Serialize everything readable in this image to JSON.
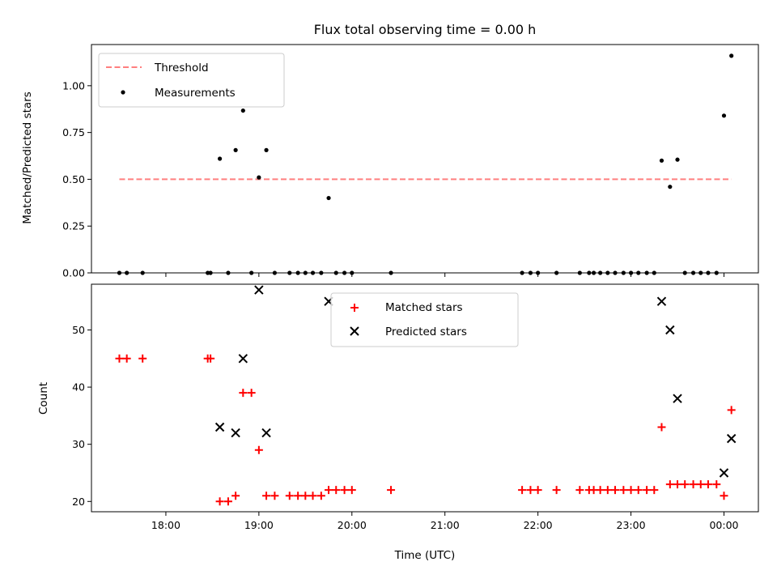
{
  "chart_data": [
    {
      "type": "scatter",
      "title": "Flux total observing time = 0.00 h",
      "xlabel": "",
      "ylabel": "Matched/Predicted stars",
      "ylim": [
        0,
        1.22
      ],
      "yticks": [
        "0.00",
        "0.25",
        "0.50",
        "0.75",
        "1.00"
      ],
      "ytick_values": [
        0,
        0.25,
        0.5,
        0.75,
        1.0
      ],
      "xlim": [
        17.2,
        24.37
      ],
      "legend_placement": "top-left",
      "legend": [
        "Threshold",
        "Measurements"
      ],
      "threshold": {
        "name": "Threshold",
        "value": 0.5,
        "x": [
          17.5,
          24.08
        ],
        "color": "#ff7f7f",
        "style": "dashed"
      },
      "series": [
        {
          "name": "Measurements",
          "color": "#000000",
          "marker": "dot",
          "x": [
            17.5,
            17.58,
            17.75,
            18.45,
            18.48,
            18.58,
            18.67,
            18.75,
            18.83,
            18.92,
            19.0,
            19.08,
            19.17,
            19.33,
            19.42,
            19.5,
            19.58,
            19.67,
            19.75,
            19.83,
            19.92,
            20.0,
            20.42,
            21.83,
            21.92,
            22.0,
            22.2,
            22.45,
            22.55,
            22.6,
            22.67,
            22.75,
            22.83,
            22.92,
            23.0,
            23.08,
            23.17,
            23.25,
            23.33,
            23.42,
            23.5,
            23.58,
            23.67,
            23.75,
            23.83,
            23.92,
            24.0,
            24.08
          ],
          "y": [
            0,
            0,
            0,
            0,
            0,
            0.61,
            0,
            0.656,
            0.867,
            0,
            0.51,
            0.656,
            0,
            0,
            0,
            0,
            0,
            0,
            0.4,
            0,
            0,
            0,
            0,
            0,
            0,
            0,
            0,
            0,
            0,
            0,
            0,
            0,
            0,
            0,
            0,
            0,
            0,
            0,
            0.6,
            0.46,
            0.605,
            0,
            0,
            0,
            0,
            0,
            0.84,
            1.16
          ]
        }
      ]
    },
    {
      "type": "scatter",
      "title": "",
      "xlabel": "Time (UTC)",
      "ylabel": "Count",
      "ylim": [
        18.2,
        58
      ],
      "yticks": [
        "20",
        "30",
        "40",
        "50"
      ],
      "ytick_values": [
        20,
        30,
        40,
        50
      ],
      "xlim": [
        17.2,
        24.37
      ],
      "xticks": [
        "18:00",
        "19:00",
        "20:00",
        "21:00",
        "22:00",
        "23:00",
        "00:00"
      ],
      "xtick_values": [
        18,
        19,
        20,
        21,
        22,
        23,
        24
      ],
      "legend_placement": "upper-center",
      "legend": [
        "Matched stars",
        "Predicted stars"
      ],
      "series": [
        {
          "name": "Matched stars",
          "color": "#ff0000",
          "marker": "plus",
          "x": [
            17.5,
            17.58,
            17.75,
            18.45,
            18.48,
            18.58,
            18.67,
            18.75,
            18.83,
            18.92,
            19.0,
            19.08,
            19.17,
            19.33,
            19.42,
            19.5,
            19.58,
            19.67,
            19.75,
            19.83,
            19.92,
            20.0,
            20.42,
            21.83,
            21.92,
            22.0,
            22.2,
            22.45,
            22.55,
            22.6,
            22.67,
            22.75,
            22.83,
            22.92,
            23.0,
            23.08,
            23.17,
            23.25,
            23.33,
            23.42,
            23.5,
            23.58,
            23.67,
            23.75,
            23.83,
            23.92,
            24.0,
            24.08
          ],
          "y": [
            45,
            45,
            45,
            45,
            45,
            20,
            20,
            21,
            39,
            39,
            29,
            21,
            21,
            21,
            21,
            21,
            21,
            21,
            22,
            22,
            22,
            22,
            22,
            22,
            22,
            22,
            22,
            22,
            22,
            22,
            22,
            22,
            22,
            22,
            22,
            22,
            22,
            22,
            33,
            23,
            23,
            23,
            23,
            23,
            23,
            23,
            21,
            36
          ]
        },
        {
          "name": "Predicted stars",
          "color": "#000000",
          "marker": "x",
          "x": [
            18.58,
            18.75,
            18.83,
            19.0,
            19.08,
            19.75,
            23.33,
            23.42,
            23.5,
            24.0,
            24.08
          ],
          "y": [
            33,
            32,
            45,
            57,
            32,
            55,
            55,
            50,
            38,
            25,
            31
          ]
        }
      ]
    }
  ]
}
